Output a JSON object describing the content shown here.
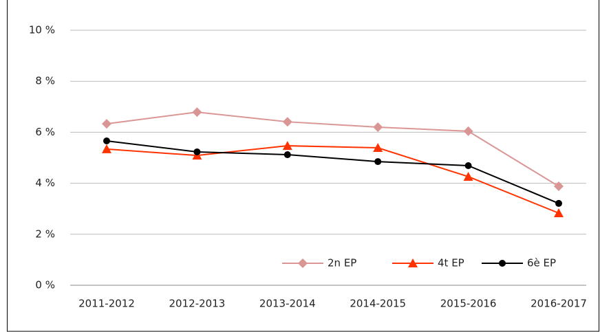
{
  "chart_data": {
    "type": "line",
    "categories": [
      "2011-2012",
      "2012-2013",
      "2013-2014",
      "2014-2015",
      "2015-2016",
      "2016-2017"
    ],
    "series": [
      {
        "name": "2n EP",
        "color": "#d99694",
        "marker": "diamond",
        "values": [
          6.33,
          6.79,
          6.41,
          6.2,
          6.04,
          3.88
        ]
      },
      {
        "name": "4t EP",
        "color": "#ff3300",
        "marker": "triangle",
        "values": [
          5.34,
          5.09,
          5.47,
          5.39,
          4.26,
          2.83
        ]
      },
      {
        "name": "6è EP",
        "color": "#000000",
        "marker": "circle",
        "values": [
          5.66,
          5.23,
          5.12,
          4.85,
          4.69,
          3.21
        ]
      }
    ],
    "ylim": [
      0,
      10
    ],
    "yticks": [
      {
        "value": 0,
        "label": "0 %"
      },
      {
        "value": 2,
        "label": "2 %"
      },
      {
        "value": 4,
        "label": "4 %"
      },
      {
        "value": 6,
        "label": "6 %"
      },
      {
        "value": 8,
        "label": "8 %"
      },
      {
        "value": 10,
        "label": "10 %"
      }
    ],
    "grid": true,
    "legend": "bottom-right"
  }
}
